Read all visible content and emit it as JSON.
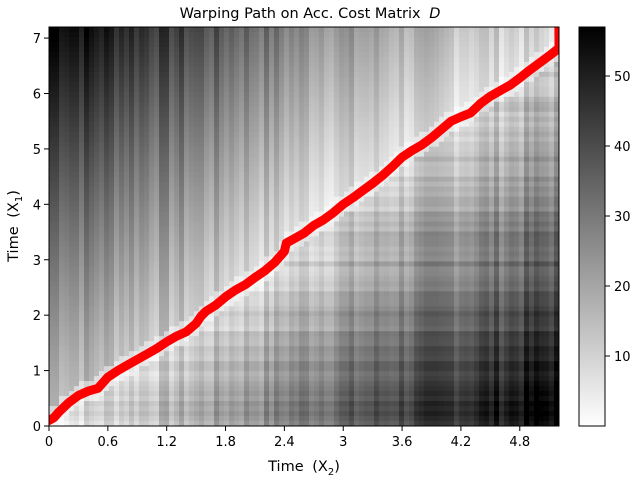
{
  "chart_data": {
    "type": "heatmap",
    "title": "Warping Path on Acc. Cost Matrix",
    "title_math": "D",
    "xlabel": "Time",
    "xlabel_math": "(X",
    "xlabel_sub": "2",
    "xlabel_close": ")",
    "ylabel": "Time",
    "ylabel_math": "(X",
    "ylabel_sub": "1",
    "ylabel_close": ")",
    "xlim": [
      0,
      5.2
    ],
    "ylim": [
      0,
      7.2
    ],
    "x_ticks": [
      0,
      0.6,
      1.2,
      1.8,
      2.4,
      3,
      3.6,
      4.2,
      4.8
    ],
    "x_tick_labels": [
      "0",
      "0.6",
      "1.2",
      "1.8",
      "2.4",
      "3",
      "3.6",
      "4.2",
      "4.8"
    ],
    "y_ticks": [
      0,
      1,
      2,
      3,
      4,
      5,
      6,
      7
    ],
    "y_tick_labels": [
      "0",
      "1",
      "2",
      "3",
      "4",
      "5",
      "6",
      "7"
    ],
    "colormap": "gray_r",
    "colorbar": {
      "vmin": 0,
      "vmax": 57,
      "ticks": [
        10,
        20,
        30,
        40,
        50
      ],
      "tick_labels": [
        "10",
        "20",
        "30",
        "40",
        "50"
      ]
    },
    "path_color": "#ff0000",
    "warping_path": {
      "x": [
        0,
        0.05,
        0.1,
        0.2,
        0.3,
        0.4,
        0.5,
        0.6,
        0.7,
        0.8,
        0.9,
        1.0,
        1.1,
        1.2,
        1.3,
        1.4,
        1.5,
        1.55,
        1.6,
        1.7,
        1.8,
        1.9,
        2.0,
        2.1,
        2.2,
        2.3,
        2.4,
        2.42,
        2.5,
        2.6,
        2.7,
        2.8,
        2.9,
        3.0,
        3.1,
        3.2,
        3.3,
        3.4,
        3.5,
        3.6,
        3.7,
        3.8,
        3.9,
        4.0,
        4.1,
        4.2,
        4.3,
        4.4,
        4.5,
        4.6,
        4.7,
        4.8,
        4.9,
        5.0,
        5.1,
        5.2,
        5.2
      ],
      "y": [
        0.1,
        0.15,
        0.25,
        0.42,
        0.55,
        0.63,
        0.68,
        0.88,
        1.0,
        1.1,
        1.2,
        1.3,
        1.4,
        1.52,
        1.62,
        1.7,
        1.85,
        1.98,
        2.07,
        2.18,
        2.33,
        2.45,
        2.55,
        2.68,
        2.8,
        2.95,
        3.15,
        3.3,
        3.38,
        3.48,
        3.62,
        3.72,
        3.85,
        4.0,
        4.12,
        4.25,
        4.38,
        4.52,
        4.68,
        4.85,
        4.97,
        5.07,
        5.2,
        5.35,
        5.5,
        5.58,
        5.65,
        5.82,
        5.95,
        6.05,
        6.15,
        6.28,
        6.42,
        6.55,
        6.68,
        6.82,
        7.2
      ]
    }
  }
}
